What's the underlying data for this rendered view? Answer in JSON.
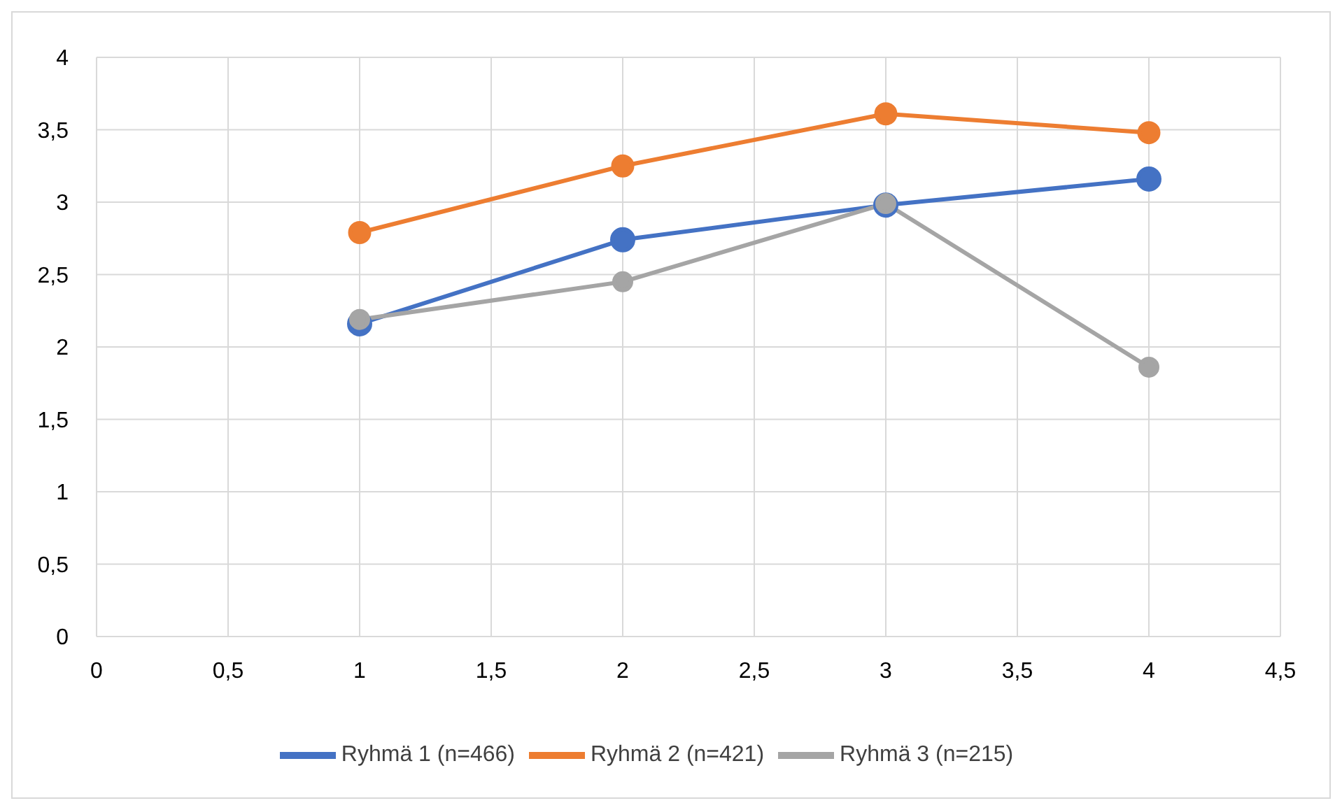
{
  "chart_data": {
    "type": "line",
    "x": [
      1,
      2,
      3,
      4
    ],
    "series": [
      {
        "name": "Ryhmä 1 (n=466)",
        "color": "#4472c4",
        "values": [
          2.16,
          2.74,
          2.98,
          3.16
        ]
      },
      {
        "name": "Ryhmä 2 (n=421)",
        "color": "#ed7d31",
        "values": [
          2.79,
          3.25,
          3.61,
          3.48
        ]
      },
      {
        "name": "Ryhmä 3 (n=215)",
        "color": "#a5a5a5",
        "values": [
          2.19,
          2.45,
          2.99,
          1.86
        ]
      }
    ],
    "xlim": [
      0,
      4.5
    ],
    "xticks": [
      0,
      {
        "value": 0.5,
        "label": "0,5"
      },
      1,
      {
        "value": 1.5,
        "label": "1,5"
      },
      2,
      {
        "value": 2.5,
        "label": "2,5"
      },
      3,
      {
        "value": 3.5,
        "label": "3,5"
      },
      4,
      {
        "value": 4.5,
        "label": "4,5"
      }
    ],
    "ylim": [
      0,
      4
    ],
    "yticks": [
      0,
      {
        "value": 0.5,
        "label": "0,5"
      },
      1,
      {
        "value": 1.5,
        "label": "1,5"
      },
      2,
      {
        "value": 2.5,
        "label": "2,5"
      },
      3,
      {
        "value": 3.5,
        "label": "3,5"
      },
      4
    ],
    "grid": true,
    "legend": "bottom",
    "marker": "circle",
    "line_style": "solid"
  }
}
